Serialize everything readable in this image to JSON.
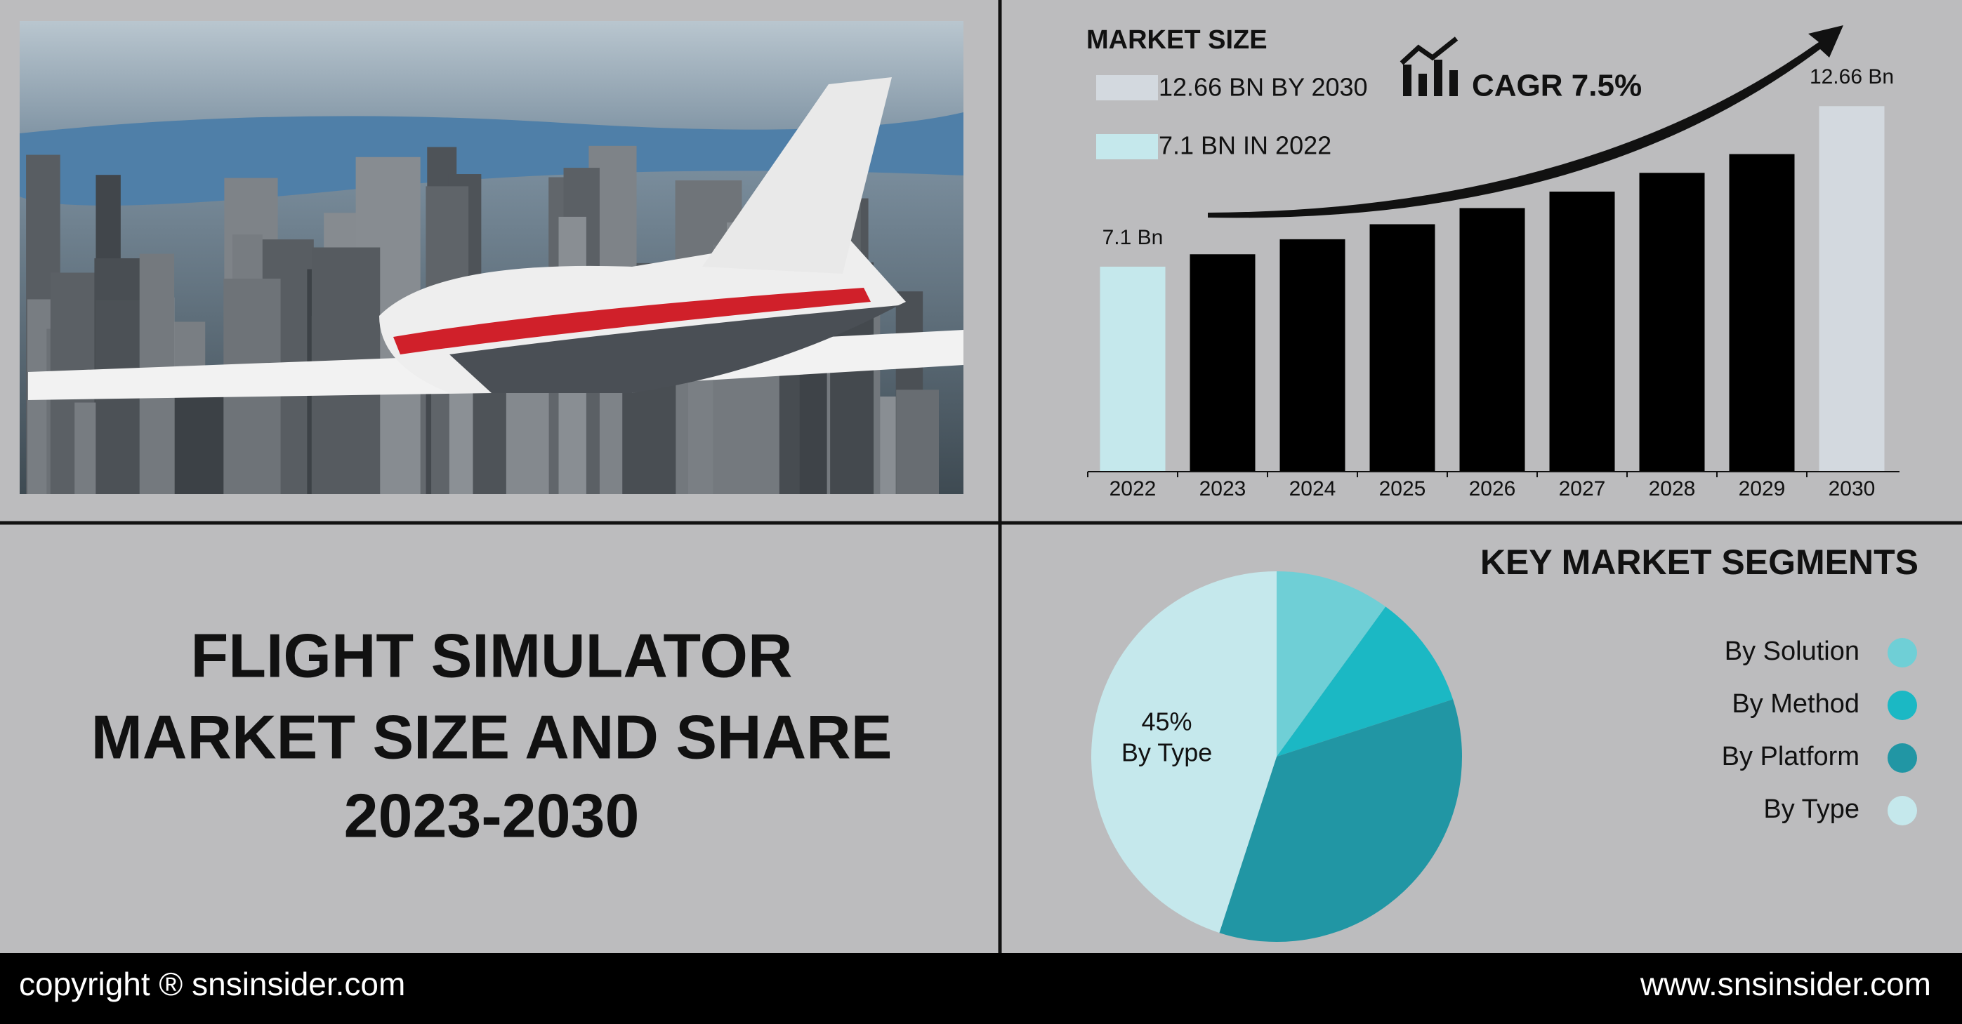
{
  "title": [
    "FLIGHT SIMULATOR",
    "MARKET SIZE AND SHARE",
    "2023-2030"
  ],
  "footer": {
    "copyright": "copyright ® snsinsider.com",
    "website": "www.snsinsider.com"
  },
  "chart_data": [
    {
      "type": "bar",
      "title": "MARKET SIZE",
      "legend": [
        {
          "label": "12.66 BN BY 2030",
          "color": "#d3d9df"
        },
        {
          "label": "7.1 BN IN 2022",
          "color": "#c5e8ec"
        }
      ],
      "annotation": "CAGR 7.5%",
      "categories": [
        "2022",
        "2023",
        "2024",
        "2025",
        "2026",
        "2027",
        "2028",
        "2029",
        "2030"
      ],
      "values": [
        7.1,
        7.53,
        8.05,
        8.57,
        9.13,
        9.7,
        10.35,
        11.0,
        12.66
      ],
      "value_labels": [
        "7.1 Bn",
        null,
        null,
        null,
        null,
        null,
        null,
        null,
        "12.66 Bn"
      ],
      "colors": [
        "#c5e8ec",
        "#000000",
        "#000000",
        "#000000",
        "#000000",
        "#000000",
        "#000000",
        "#000000",
        "#d3d9df"
      ],
      "ylim": [
        0,
        15
      ]
    },
    {
      "type": "pie",
      "title": "KEY MARKET SEGMENTS",
      "categories": [
        "By Solution",
        "By Method",
        "By Platform",
        "By Type"
      ],
      "values": [
        10,
        10,
        35,
        45
      ],
      "value_labels": [
        null,
        null,
        null,
        "45%"
      ],
      "colors": [
        "#6fcfd6",
        "#1bb8c4",
        "#2196a4",
        "#c5e8ec"
      ]
    }
  ]
}
